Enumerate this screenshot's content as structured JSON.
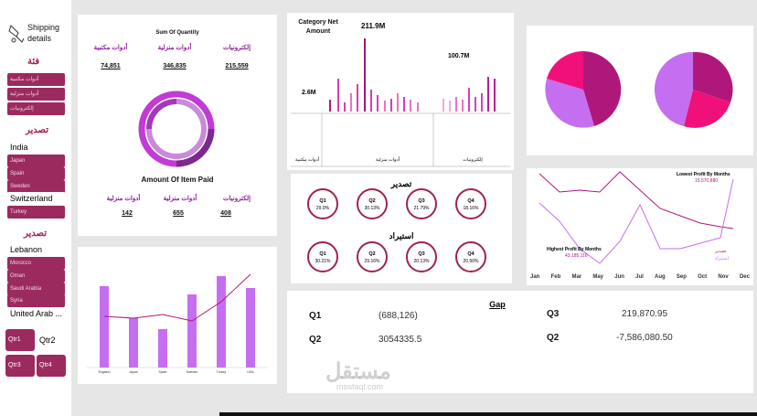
{
  "sidebar": {
    "title": "Shipping details",
    "category_header": "فئة",
    "categories": [
      "أدوات مكتبية",
      "أدوات منزلية",
      "إلكترونيات"
    ],
    "export_header": "تصدير",
    "export_countries": [
      "India",
      "Japan",
      "Spain",
      "Sweden",
      "Switzerland",
      "Turkey"
    ],
    "export_selected": [
      "India",
      "Switzerland"
    ],
    "import_header": "تصدير",
    "import_countries": [
      "Lebanon",
      "Morocco",
      "Oman",
      "Saudi Arabia",
      "Syria",
      "United Arab ..."
    ],
    "import_selected": [
      "Lebanon",
      "United Arab ..."
    ],
    "quarters": [
      "Qtr1",
      "Qtr2",
      "Qtr3",
      "Qtr4"
    ],
    "quarter_selected": "Qtr2"
  },
  "quantity_panel": {
    "title": "Sum Of Quantity",
    "items": [
      {
        "label": "أدوات مكتبية",
        "value": "74,851"
      },
      {
        "label": "أدوات منزلية",
        "value": "346,835"
      },
      {
        "label": "إلكترونيات",
        "value": "215,559"
      }
    ],
    "amount_title": "Amount Of Item Paid",
    "amount_items": [
      {
        "label": "أدوات منزلية",
        "value": "142"
      },
      {
        "label": "أدوات منزلية",
        "value": "655"
      },
      {
        "label": "إلكترونيات",
        "value": "408"
      }
    ]
  },
  "category_net": {
    "title": "Category Net Amount",
    "annotations": [
      "211.9M",
      "100.7M",
      "2.6M"
    ],
    "groups": [
      "أدوات مكتبية",
      "أدوات منزلية",
      "إلكترونيات"
    ]
  },
  "quarters_panel": {
    "export_title": "تصدير",
    "export": [
      {
        "q": "Q1",
        "pct": "29.9%"
      },
      {
        "q": "Q2",
        "pct": "30.13%"
      },
      {
        "q": "Q3",
        "pct": "21.79%"
      },
      {
        "q": "Q4",
        "pct": "18.16%"
      }
    ],
    "import_title": "استيراد",
    "import": [
      {
        "q": "Q1",
        "pct": "30.21%"
      },
      {
        "q": "Q2",
        "pct": "29.16%"
      },
      {
        "q": "Q3",
        "pct": "20.13%"
      },
      {
        "q": "Q4",
        "pct": "20.50%"
      }
    ]
  },
  "profit_chart": {
    "lowest_label": "Lowest Profit By Months",
    "lowest_value": "15,570,880",
    "highest_label": "Highest Profit By Months",
    "highest_value": "43,185,116",
    "legend": [
      "تصدير",
      "استيراد"
    ],
    "months": [
      "Jan",
      "Feb",
      "Mar",
      "May",
      "Jun",
      "Jul",
      "Aug",
      "Sep",
      "Oct",
      "Nov",
      "Dec"
    ]
  },
  "gap_panel": {
    "title": "Gap",
    "rows": [
      {
        "q": "Q1",
        "value": "(688,126)"
      },
      {
        "q": "Q2",
        "value": "3054335.5"
      },
      {
        "q": "Q3",
        "value": "219,870.95"
      },
      {
        "q": "Q2",
        "value": "-7,586,080.50"
      }
    ]
  },
  "country_bars": {
    "categories": [
      "England",
      "Japan",
      "Spain",
      "Sweden",
      "Turkey",
      "USA"
    ]
  },
  "watermark": {
    "arabic": "مستقل",
    "latin": "mostaql.com"
  },
  "colors": {
    "accent": "#9b2a5f",
    "purple": "#c56ef0",
    "magenta": "#b0177b",
    "pink": "#f0107a"
  }
}
